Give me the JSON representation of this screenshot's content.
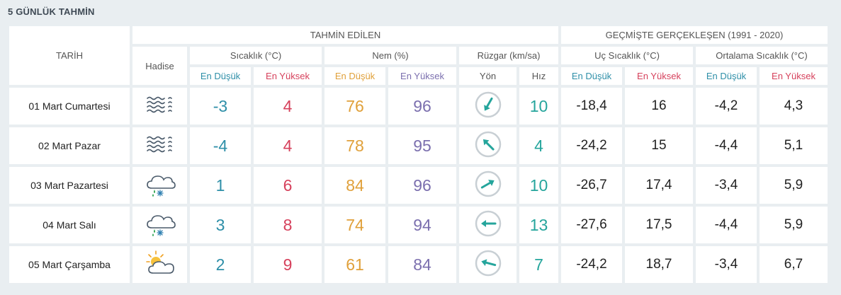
{
  "title": "5 GÜNLÜK TAHMİN",
  "headers": {
    "tarih": "TARİH",
    "tahmin": "TAHMİN EDİLEN",
    "gecmis": "GEÇMİŞTE GERÇEKLEŞEN (1991 - 2020)",
    "hadise": "Hadise",
    "sicaklik": "Sıcaklık (°C)",
    "nem": "Nem (%)",
    "ruzgar": "Rüzgar (km/sa)",
    "uc_sicaklik": "Uç Sıcaklık (°C)",
    "ortalama_sicaklik": "Ortalama Sıcaklık (°C)",
    "en_dusuk": "En Düşük",
    "en_yuksek": "En Yüksek",
    "yon": "Yön",
    "hiz": "Hız"
  },
  "colors": {
    "low": "#2e8fa8",
    "high": "#d6415c",
    "hum_low": "#e0a03a",
    "hum_high": "#7b6fae",
    "wind": "#25a59c"
  },
  "rows": [
    {
      "date": "01 Mart Cumartesi",
      "icon": "fog-icon",
      "temp_low": "-3",
      "temp_high": "4",
      "hum_low": "76",
      "hum_high": "96",
      "wind_dir_deg": 120,
      "wind_speed": "10",
      "hist_min": "-18,4",
      "hist_max": "16",
      "avg_low": "-4,2",
      "avg_high": "4,3"
    },
    {
      "date": "02 Mart Pazar",
      "icon": "fog-icon",
      "temp_low": "-4",
      "temp_high": "4",
      "hum_low": "78",
      "hum_high": "95",
      "wind_dir_deg": 225,
      "wind_speed": "4",
      "hist_min": "-24,2",
      "hist_max": "15",
      "avg_low": "-4,4",
      "avg_high": "5,1"
    },
    {
      "date": "03 Mart Pazartesi",
      "icon": "sleet-cloud-icon",
      "temp_low": "1",
      "temp_high": "6",
      "hum_low": "84",
      "hum_high": "96",
      "wind_dir_deg": -30,
      "wind_speed": "10",
      "hist_min": "-26,7",
      "hist_max": "17,4",
      "avg_low": "-3,4",
      "avg_high": "5,9"
    },
    {
      "date": "04 Mart Salı",
      "icon": "sleet-cloud-icon",
      "temp_low": "3",
      "temp_high": "8",
      "hum_low": "74",
      "hum_high": "94",
      "wind_dir_deg": 180,
      "wind_speed": "13",
      "hist_min": "-27,6",
      "hist_max": "17,5",
      "avg_low": "-4,4",
      "avg_high": "5,9"
    },
    {
      "date": "05 Mart Çarşamba",
      "icon": "partly-cloudy-icon",
      "temp_low": "2",
      "temp_high": "9",
      "hum_low": "61",
      "hum_high": "84",
      "wind_dir_deg": 195,
      "wind_speed": "7",
      "hist_min": "-24,2",
      "hist_max": "18,7",
      "avg_low": "-3,4",
      "avg_high": "6,7"
    }
  ]
}
